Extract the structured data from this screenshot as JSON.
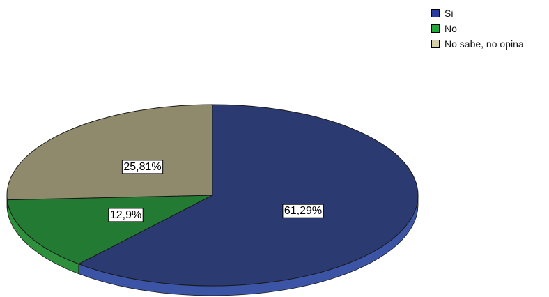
{
  "chart_data": {
    "type": "pie",
    "title": "",
    "categories": [
      "Si",
      "No",
      "No sabe, no opina"
    ],
    "values": [
      61.29,
      12.9,
      25.81
    ],
    "data_labels": [
      "61,29%",
      "12,9%",
      "25,81%"
    ],
    "colors": [
      "#2b3a70",
      "#237a32",
      "#8f8a6b"
    ],
    "side_colors": [
      "#3b54a6",
      "#2e8f3c",
      "#a19b78"
    ],
    "legend_placement": "top-right",
    "legend_colors": [
      "#2b3aa0",
      "#23a83a",
      "#d6d0a8"
    ],
    "start_angle_deg": 90,
    "direction": "clockwise",
    "three_d": true
  }
}
